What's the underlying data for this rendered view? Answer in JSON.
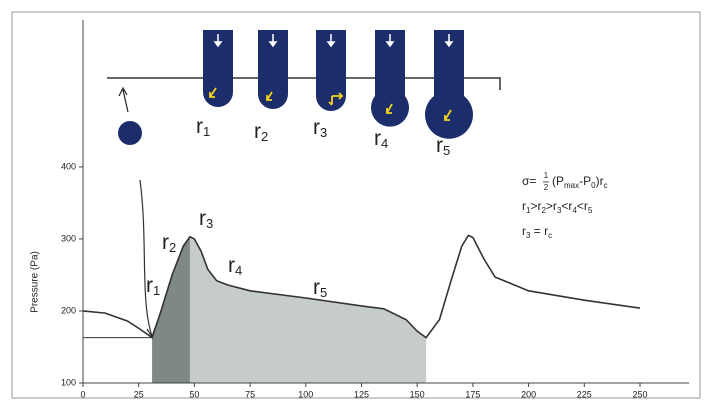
{
  "chart_data": {
    "type": "line",
    "y_label": "Pressure (Pa)",
    "x": [
      0,
      10,
      20,
      25,
      31,
      35,
      40,
      45,
      48,
      50,
      53,
      56,
      60,
      65,
      75,
      100,
      125,
      135,
      145,
      150,
      154,
      160,
      165,
      170,
      173,
      175,
      180,
      185,
      200,
      225,
      250
    ],
    "series": [
      {
        "color": "#333333",
        "values": [
          200,
          197,
          186,
          176,
          163,
          200,
          250,
          290,
          303,
          300,
          283,
          258,
          242,
          236,
          228,
          218,
          207,
          203,
          188,
          172,
          163,
          188,
          240,
          290,
          305,
          302,
          272,
          247,
          228,
          215,
          204
        ]
      }
    ],
    "reference_line": 163,
    "shaded_regions": [
      {
        "from": 31,
        "to": 48,
        "color": "#7e8987"
      },
      {
        "from": 48,
        "to": 154,
        "color": "#c5cccb"
      }
    ],
    "xlim": [
      0,
      272
    ],
    "ylim": [
      100,
      604
    ],
    "xticks": [
      0,
      25,
      50,
      75,
      100,
      125,
      150,
      175,
      200,
      225,
      250
    ],
    "yticks": [
      100,
      200,
      300,
      400
    ],
    "curve_labels": [
      {
        "base": "r",
        "sub": "1"
      },
      {
        "base": "r",
        "sub": "2"
      },
      {
        "base": "r",
        "sub": "3"
      },
      {
        "base": "r",
        "sub": "4"
      },
      {
        "base": "r",
        "sub": "5"
      }
    ],
    "diagram_labels": [
      {
        "base": "r",
        "sub": "1"
      },
      {
        "base": "r",
        "sub": "2"
      },
      {
        "base": "r",
        "sub": "3"
      },
      {
        "base": "r",
        "sub": "4"
      },
      {
        "base": "r",
        "sub": "5"
      }
    ],
    "formula": {
      "lhs": "σ=",
      "num": "1",
      "den": "2",
      "rhs": [
        {
          "t": "(P"
        },
        {
          "t": "max",
          "sub": true
        },
        {
          "t": "-P"
        },
        {
          "t": "0",
          "sub": true
        },
        {
          "t": ")r"
        },
        {
          "t": "c",
          "sub": true
        }
      ]
    },
    "relations": [
      [
        {
          "t": "r"
        },
        {
          "t": "1",
          "sub": true
        },
        {
          "t": ">r"
        },
        {
          "t": "2",
          "sub": true
        },
        {
          "t": ">r"
        },
        {
          "t": "3",
          "sub": true
        },
        {
          "t": "<r"
        },
        {
          "t": "4",
          "sub": true
        },
        {
          "t": "<r"
        },
        {
          "t": "5",
          "sub": true
        }
      ],
      [
        {
          "t": "r"
        },
        {
          "t": "3",
          "sub": true
        },
        {
          "t": " = r"
        },
        {
          "t": "c",
          "sub": true
        }
      ]
    ]
  }
}
